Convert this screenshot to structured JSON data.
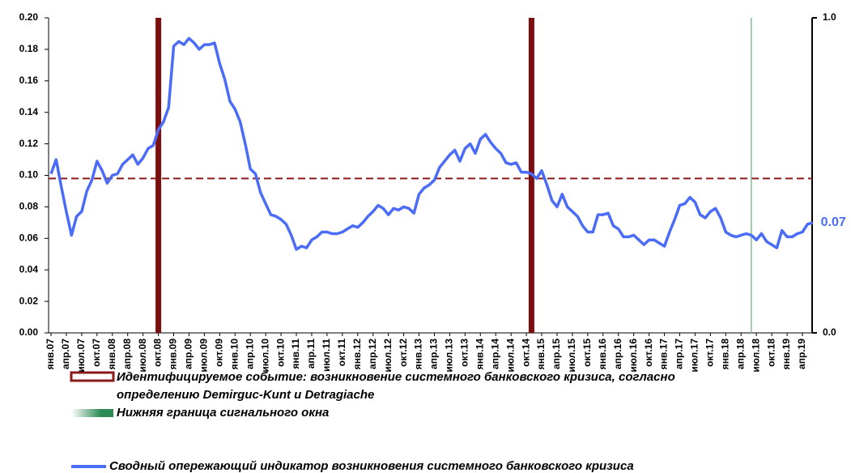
{
  "chart_data": {
    "type": "line",
    "categories": [
      "янв.07",
      null,
      null,
      "апр.07",
      null,
      null,
      "июл.07",
      null,
      null,
      "окт.07",
      null,
      null,
      "янв.08",
      null,
      null,
      "апр.08",
      null,
      null,
      "июл.08",
      null,
      null,
      "окт.08",
      null,
      null,
      "янв.09",
      null,
      null,
      "апр.09",
      null,
      null,
      "июл.09",
      null,
      null,
      "окт.09",
      null,
      null,
      "янв.10",
      null,
      null,
      "апр.10",
      null,
      null,
      "июл.10",
      null,
      null,
      "окт.10",
      null,
      null,
      "янв.11",
      null,
      null,
      "апр.11",
      null,
      null,
      "июл.11",
      null,
      null,
      "окт.11",
      null,
      null,
      "янв.12",
      null,
      null,
      "апр.12",
      null,
      null,
      "июл.12",
      null,
      null,
      "окт.12",
      null,
      null,
      "янв.13",
      null,
      null,
      "апр.13",
      null,
      null,
      "июл.13",
      null,
      null,
      "окт.13",
      null,
      null,
      "янв.14",
      null,
      null,
      "апр.14",
      null,
      null,
      "июл.14",
      null,
      null,
      "окт.14",
      null,
      null,
      "янв.15",
      null,
      null,
      "апр.15",
      null,
      null,
      "июл.15",
      null,
      null,
      "окт.15",
      null,
      null,
      "янв.16",
      null,
      null,
      "апр.16",
      null,
      null,
      "июл.16",
      null,
      null,
      "окт.16",
      null,
      null,
      "янв.17",
      null,
      null,
      "апр.17",
      null,
      null,
      "июл.17",
      null,
      null,
      "окт.17",
      null,
      null,
      "янв.18",
      null,
      null,
      "апр.18",
      null,
      null,
      "июл.18",
      null,
      null,
      "окт.18",
      null,
      null,
      "янв.19",
      null,
      null,
      "апр.19",
      null,
      null
    ],
    "series": [
      {
        "name": "Сводный опережающий индикатор возникновения системного банковского кризиса",
        "color": "#4a6cf7",
        "values": [
          0.101,
          0.11,
          0.093,
          0.077,
          0.062,
          0.074,
          0.077,
          0.09,
          0.097,
          0.109,
          0.103,
          0.095,
          0.1,
          0.101,
          0.107,
          0.11,
          0.113,
          0.107,
          0.111,
          0.117,
          0.119,
          0.129,
          0.134,
          0.143,
          0.182,
          0.185,
          0.183,
          0.187,
          0.184,
          0.18,
          0.183,
          0.183,
          0.184,
          0.171,
          0.161,
          0.147,
          0.142,
          0.134,
          0.12,
          0.104,
          0.101,
          0.089,
          0.082,
          0.075,
          0.074,
          0.072,
          0.069,
          0.062,
          0.053,
          0.055,
          0.054,
          0.059,
          0.061,
          0.064,
          0.064,
          0.063,
          0.063,
          0.064,
          0.066,
          0.068,
          0.067,
          0.07,
          0.074,
          0.077,
          0.081,
          0.079,
          0.075,
          0.079,
          0.078,
          0.08,
          0.079,
          0.076,
          0.088,
          0.092,
          0.094,
          0.097,
          0.105,
          0.109,
          0.113,
          0.116,
          0.109,
          0.117,
          0.12,
          0.114,
          0.123,
          0.126,
          0.121,
          0.117,
          0.114,
          0.108,
          0.107,
          0.108,
          0.102,
          0.102,
          0.101,
          0.098,
          0.103,
          0.094,
          0.084,
          0.08,
          0.088,
          0.08,
          0.077,
          0.074,
          0.068,
          0.064,
          0.064,
          0.075,
          0.075,
          0.076,
          0.068,
          0.066,
          0.061,
          0.061,
          0.062,
          0.059,
          0.056,
          0.059,
          0.059,
          0.057,
          0.055,
          0.064,
          0.072,
          0.081,
          0.082,
          0.086,
          0.083,
          0.075,
          0.073,
          0.077,
          0.079,
          0.073,
          0.064,
          0.062,
          0.061,
          0.062,
          0.063,
          0.062,
          0.059,
          0.063,
          0.058,
          0.056,
          0.054,
          0.065,
          0.061,
          0.061,
          0.063,
          0.064,
          0.069,
          0.07
        ],
        "end_label": "0.07"
      }
    ],
    "threshold": 0.098,
    "threshold_color": "#8b1a1a",
    "crisis_index": [
      21,
      94
    ],
    "crisis_color": "#7b1010",
    "crisis_label": [
      "Идентифицируемое событие: возникновение системного банковского кризиса, согласно",
      "определению Demirguc-Kunt и Detragiache"
    ],
    "signal_index": 137,
    "signal_color": "#7fbf8f",
    "signal_label": "Нижняя граница сигнального окна",
    "ylim": [
      0,
      0.2
    ],
    "yticks": [
      {
        "value": 0,
        "label": "0.00"
      },
      {
        "value": 0.02,
        "label": "0.02"
      },
      {
        "value": 0.04,
        "label": "0.04"
      },
      {
        "value": 0.06,
        "label": "0.06"
      },
      {
        "value": 0.08,
        "label": "0.08"
      },
      {
        "value": 0.1,
        "label": "0.10"
      },
      {
        "value": 0.12,
        "label": "0.12"
      },
      {
        "value": 0.14,
        "label": "0.14"
      },
      {
        "value": 0.16,
        "label": "0.16"
      },
      {
        "value": 0.18,
        "label": "0.18"
      },
      {
        "value": 0.2,
        "label": "0.20"
      }
    ],
    "y2lim": [
      0,
      1
    ],
    "y2ticks": [
      {
        "value": 0,
        "label": "0.0"
      },
      {
        "value": 1,
        "label": "1.0"
      }
    ]
  }
}
